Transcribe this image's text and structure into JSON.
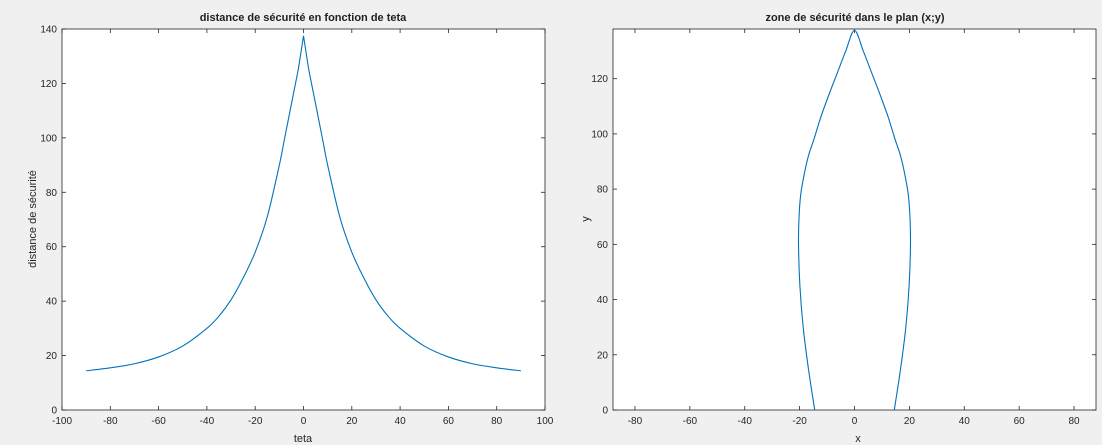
{
  "chart_data": [
    {
      "type": "line",
      "title": "distance de sécurité en fonction de teta",
      "xlabel": "teta",
      "ylabel": "distance de sécurité",
      "xlim": [
        -100,
        100
      ],
      "ylim": [
        0,
        140
      ],
      "xticks": [
        -100,
        -80,
        -60,
        -40,
        -20,
        0,
        20,
        40,
        60,
        80,
        100
      ],
      "yticks": [
        0,
        20,
        40,
        60,
        80,
        100,
        120,
        140
      ],
      "grid": false,
      "line_color": "#0072BD",
      "series": [
        {
          "x": [
            -90,
            -80,
            -70,
            -60,
            -50,
            -40,
            -35,
            -30,
            -25,
            -20,
            -15,
            -10,
            -8,
            -6,
            -4,
            -2,
            0,
            2,
            4,
            6,
            8,
            10,
            15,
            20,
            25,
            30,
            35,
            40,
            50,
            60,
            70,
            80,
            90
          ],
          "y": [
            14.4,
            15.5,
            17,
            19.5,
            23.5,
            30,
            34.5,
            40.5,
            48.5,
            58,
            71,
            90,
            99,
            108,
            117,
            126,
            137.5,
            126,
            117,
            108,
            99,
            90,
            71,
            58,
            48.5,
            40.5,
            34.5,
            30,
            23.5,
            19.5,
            17,
            15.5,
            14.4
          ]
        }
      ]
    },
    {
      "type": "line",
      "title": "zone de sécurité dans le plan (x;y)",
      "xlabel": "x",
      "ylabel": "y",
      "xlim": [
        -88,
        88
      ],
      "ylim": [
        0,
        138
      ],
      "xticks": [
        -80,
        -60,
        -40,
        -20,
        0,
        20,
        40,
        60,
        80
      ],
      "yticks": [
        0,
        20,
        40,
        60,
        80,
        100,
        120
      ],
      "grid": false,
      "line_color": "#0072BD",
      "series": [
        {
          "x": [
            -14.5,
            -16.8,
            -18.7,
            -19.9,
            -20.4,
            -20.2,
            -19.6,
            -18.4,
            -16.8,
            -14.8,
            -12.3,
            -9.4,
            -6.3,
            -3.2,
            0,
            3.2,
            6.3,
            9.4,
            12.3,
            14.8,
            16.8,
            18.4,
            19.6,
            20.2,
            20.4,
            19.9,
            18.7,
            16.8,
            14.5
          ],
          "y": [
            0,
            15,
            30,
            45,
            60,
            70,
            78,
            85,
            92,
            98,
            106,
            114,
            122,
            130,
            137.5,
            130,
            122,
            114,
            106,
            98,
            92,
            85,
            78,
            70,
            60,
            45,
            30,
            15,
            0
          ]
        }
      ]
    }
  ]
}
